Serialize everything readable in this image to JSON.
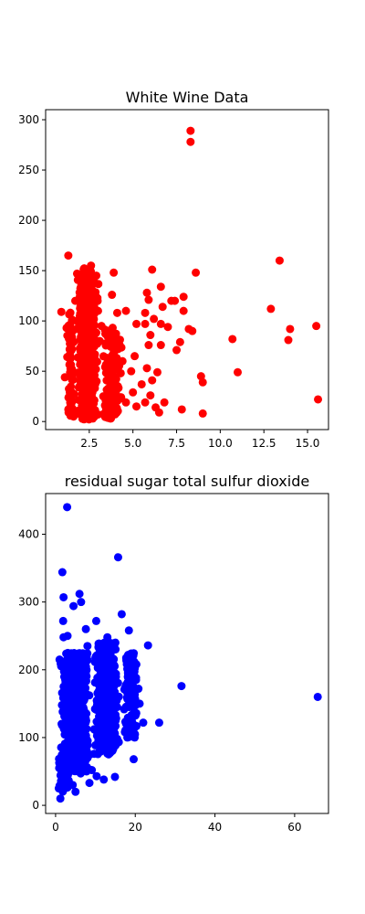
{
  "chart_data": [
    {
      "type": "scatter",
      "title": "White Wine Data",
      "xlabel": "",
      "ylabel": "",
      "xlim": [
        0.0,
        16.2
      ],
      "ylim": [
        -8,
        310
      ],
      "xticks": [
        2.5,
        5.0,
        7.5,
        10.0,
        12.5,
        15.0
      ],
      "xtick_labels": [
        "2.5",
        "5.0",
        "7.5",
        "10.0",
        "12.5",
        "15.0"
      ],
      "yticks": [
        0,
        50,
        100,
        150,
        200,
        250,
        300
      ],
      "ytick_labels": [
        "0",
        "50",
        "100",
        "150",
        "200",
        "250",
        "300"
      ],
      "grid": false,
      "color": "#ff0000",
      "series": [
        {
          "points": [
            [
              8.3,
              289
            ],
            [
              8.3,
              278
            ],
            [
              1.3,
              165
            ],
            [
              13.4,
              160
            ],
            [
              2.6,
              155
            ],
            [
              2.2,
              152
            ],
            [
              6.1,
              151
            ],
            [
              3.9,
              148
            ],
            [
              8.6,
              148
            ],
            [
              1.8,
              147
            ],
            [
              2.9,
              145
            ],
            [
              2.5,
              140
            ],
            [
              6.6,
              134
            ],
            [
              5.8,
              128
            ],
            [
              3.8,
              126
            ],
            [
              7.9,
              124
            ],
            [
              5.9,
              121
            ],
            [
              7.2,
              120
            ],
            [
              7.4,
              120
            ],
            [
              6.7,
              114
            ],
            [
              12.9,
              112
            ],
            [
              4.6,
              110
            ],
            [
              7.9,
              110
            ],
            [
              0.9,
              109
            ],
            [
              4.1,
              108
            ],
            [
              5.7,
              108
            ],
            [
              2.4,
              105
            ],
            [
              6.2,
              102
            ],
            [
              5.2,
              97
            ],
            [
              5.7,
              97
            ],
            [
              6.6,
              97
            ],
            [
              7.0,
              94
            ],
            [
              8.2,
              92
            ],
            [
              14.0,
              92
            ],
            [
              15.5,
              95
            ],
            [
              8.4,
              90
            ],
            [
              1.2,
              93
            ],
            [
              3.2,
              95
            ],
            [
              3.6,
              90
            ],
            [
              6.0,
              86
            ],
            [
              10.7,
              82
            ],
            [
              13.9,
              81
            ],
            [
              7.7,
              79
            ],
            [
              5.9,
              76
            ],
            [
              6.6,
              76
            ],
            [
              4.1,
              73
            ],
            [
              7.5,
              71
            ],
            [
              3.9,
              68
            ],
            [
              5.1,
              65
            ],
            [
              1.4,
              62
            ],
            [
              2.0,
              58
            ],
            [
              4.4,
              60
            ],
            [
              5.8,
              53
            ],
            [
              4.9,
              50
            ],
            [
              6.4,
              49
            ],
            [
              11.0,
              49
            ],
            [
              2.8,
              46
            ],
            [
              4.3,
              48
            ],
            [
              8.9,
              45
            ],
            [
              1.1,
              44
            ],
            [
              6.1,
              41
            ],
            [
              9.0,
              39
            ],
            [
              3.7,
              38
            ],
            [
              5.5,
              37
            ],
            [
              1.9,
              34
            ],
            [
              4.0,
              32
            ],
            [
              5.0,
              29
            ],
            [
              1.5,
              27
            ],
            [
              3.3,
              25
            ],
            [
              6.0,
              26
            ],
            [
              15.6,
              22
            ],
            [
              2.1,
              21
            ],
            [
              4.6,
              19
            ],
            [
              5.7,
              19
            ],
            [
              6.8,
              19
            ],
            [
              2.4,
              17
            ],
            [
              3.4,
              16
            ],
            [
              5.2,
              15
            ],
            [
              6.3,
              14
            ],
            [
              7.8,
              12
            ],
            [
              1.3,
              12
            ],
            [
              4.1,
              11
            ],
            [
              6.5,
              9
            ],
            [
              9.0,
              8
            ],
            [
              2.0,
              8
            ],
            [
              3.0,
              7
            ],
            [
              1.6,
              5
            ],
            [
              2.3,
              4
            ],
            [
              2.7,
              3
            ],
            [
              1.8,
              100
            ],
            [
              2.2,
              130
            ],
            [
              2.6,
              85
            ],
            [
              3.0,
              110
            ],
            [
              2.0,
              70
            ],
            [
              2.4,
              40
            ],
            [
              2.8,
              60
            ],
            [
              1.7,
              120
            ],
            [
              2.5,
              30
            ],
            [
              3.1,
              80
            ],
            [
              2.1,
              95
            ]
          ]
        }
      ],
      "dense_clusters": [
        {
          "x_range": [
            1.7,
            3.1
          ],
          "y_range": [
            2,
            142
          ],
          "n": 650
        },
        {
          "x_range": [
            1.2,
            1.7
          ],
          "y_range": [
            5,
            110
          ],
          "n": 60
        },
        {
          "x_range": [
            3.1,
            4.5
          ],
          "y_range": [
            3,
            95
          ],
          "n": 120
        },
        {
          "x_range": [
            1.9,
            2.8
          ],
          "y_range": [
            140,
            154
          ],
          "n": 30
        }
      ]
    },
    {
      "type": "scatter",
      "title": "residual sugar total sulfur dioxide",
      "xlabel": "",
      "ylabel": "",
      "xlim": [
        -2.5,
        68.5
      ],
      "ylim": [
        -12,
        460
      ],
      "xticks": [
        0,
        20,
        40,
        60
      ],
      "xtick_labels": [
        "0",
        "20",
        "40",
        "60"
      ],
      "yticks": [
        0,
        100,
        200,
        300,
        400
      ],
      "ytick_labels": [
        "0",
        "100",
        "200",
        "300",
        "400"
      ],
      "grid": false,
      "color": "#0000ff",
      "series": [
        {
          "points": [
            [
              2.9,
              440
            ],
            [
              1.7,
              344
            ],
            [
              15.7,
              366
            ],
            [
              2.0,
              307
            ],
            [
              6.0,
              312
            ],
            [
              4.5,
              294
            ],
            [
              6.4,
              300
            ],
            [
              16.6,
              282
            ],
            [
              10.2,
              272
            ],
            [
              1.9,
              272
            ],
            [
              2.0,
              248
            ],
            [
              3.0,
              250
            ],
            [
              7.6,
              260
            ],
            [
              18.4,
              258
            ],
            [
              23.2,
              236
            ],
            [
              31.6,
              176
            ],
            [
              65.8,
              160
            ],
            [
              22.0,
              122
            ],
            [
              26.0,
              122
            ],
            [
              19.6,
              68
            ],
            [
              1.2,
              27
            ],
            [
              1.2,
              10
            ],
            [
              0.8,
              25
            ],
            [
              2.4,
              33
            ],
            [
              5.0,
              20
            ],
            [
              4.3,
              30
            ],
            [
              8.5,
              33
            ],
            [
              10.3,
              43
            ],
            [
              14.9,
              42
            ],
            [
              12.1,
              38
            ],
            [
              6.3,
              47
            ],
            [
              9.1,
              52
            ],
            [
              3.1,
              45
            ],
            [
              0.9,
              55
            ],
            [
              17.4,
              108
            ],
            [
              18.7,
              160
            ],
            [
              20.2,
              185
            ],
            [
              21.1,
              150
            ],
            [
              19.1,
              205
            ],
            [
              1.0,
              215
            ],
            [
              11.0,
              222
            ],
            [
              15.0,
              240
            ],
            [
              8.0,
              235
            ],
            [
              13.0,
              248
            ],
            [
              5.5,
              200
            ],
            [
              12.4,
              180
            ],
            [
              20.8,
              172
            ]
          ]
        }
      ],
      "dense_clusters": [
        {
          "x_range": [
            0.6,
            9.0
          ],
          "y_range": [
            50,
            225
          ],
          "n": 900
        },
        {
          "x_range": [
            9.0,
            16.5
          ],
          "y_range": [
            75,
            240
          ],
          "n": 520
        },
        {
          "x_range": [
            16.5,
            21.0
          ],
          "y_range": [
            100,
            225
          ],
          "n": 140
        },
        {
          "x_range": [
            0.6,
            3.5
          ],
          "y_range": [
            20,
            75
          ],
          "n": 60
        }
      ]
    }
  ]
}
